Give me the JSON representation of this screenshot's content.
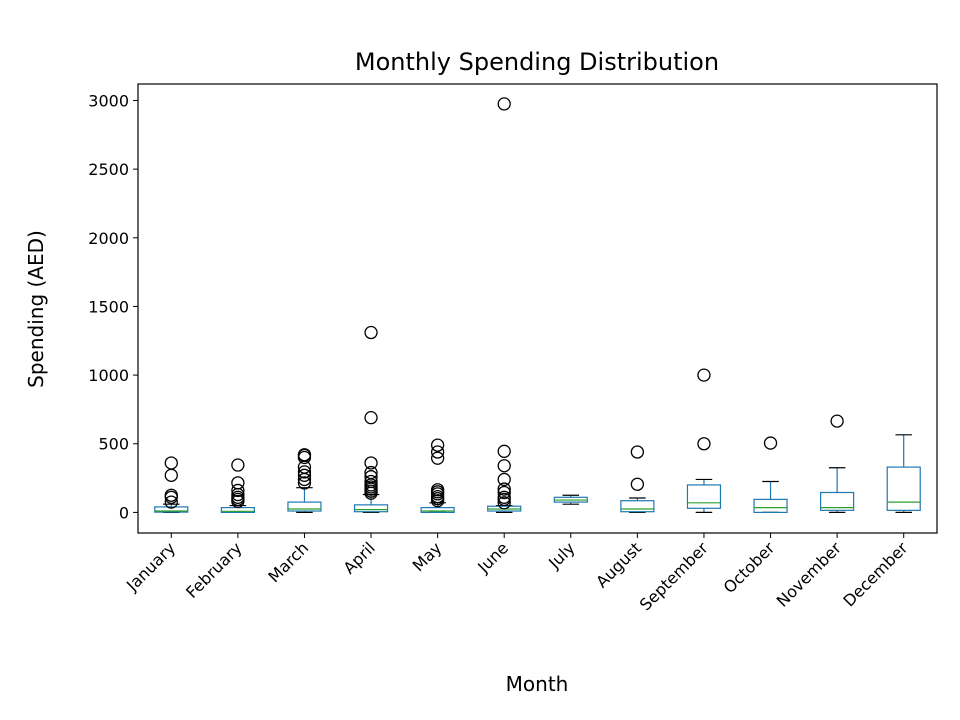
{
  "chart_data": {
    "type": "box",
    "title": "Monthly Spending Distribution",
    "xlabel": "Month",
    "ylabel": "Spending (AED)",
    "ylim": [
      -150,
      3120
    ],
    "yticks": [
      0,
      500,
      1000,
      1500,
      2000,
      2500,
      3000
    ],
    "grid": false,
    "categories": [
      "January",
      "February",
      "March",
      "April",
      "May",
      "June",
      "July",
      "August",
      "September",
      "October",
      "November",
      "December"
    ],
    "boxes": [
      {
        "category": "January",
        "whisker_low": 0,
        "q1": 2,
        "median": 10,
        "q3": 40,
        "whisker_high": 60,
        "outliers": [
          75,
          110,
          125,
          270,
          360
        ]
      },
      {
        "category": "February",
        "whisker_low": 0,
        "q1": 0,
        "median": 8,
        "q3": 35,
        "whisker_high": 50,
        "outliers": [
          80,
          95,
          110,
          130,
          160,
          215,
          345
        ]
      },
      {
        "category": "March",
        "whisker_low": 0,
        "q1": 10,
        "median": 25,
        "q3": 75,
        "whisker_high": 180,
        "outliers": [
          215,
          240,
          270,
          295,
          330,
          400,
          415,
          420
        ]
      },
      {
        "category": "April",
        "whisker_low": 0,
        "q1": 5,
        "median": 20,
        "q3": 55,
        "whisker_high": 130,
        "outliers": [
          140,
          155,
          170,
          185,
          200,
          225,
          260,
          290,
          360,
          690,
          1310
        ]
      },
      {
        "category": "May",
        "whisker_low": 0,
        "q1": 0,
        "median": 10,
        "q3": 35,
        "whisker_high": 70,
        "outliers": [
          85,
          100,
          115,
          135,
          150,
          165,
          395,
          440,
          490
        ]
      },
      {
        "category": "June",
        "whisker_low": 0,
        "q1": 10,
        "median": 25,
        "q3": 45,
        "whisker_high": 50,
        "outliers": [
          70,
          95,
          110,
          145,
          170,
          240,
          340,
          445,
          2975
        ]
      },
      {
        "category": "July",
        "whisker_low": 60,
        "q1": 75,
        "median": 90,
        "q3": 110,
        "whisker_high": 125,
        "outliers": []
      },
      {
        "category": "August",
        "whisker_low": 0,
        "q1": 5,
        "median": 25,
        "q3": 85,
        "whisker_high": 105,
        "outliers": [
          205,
          440
        ]
      },
      {
        "category": "September",
        "whisker_low": 0,
        "q1": 30,
        "median": 70,
        "q3": 200,
        "whisker_high": 240,
        "outliers": [
          500,
          1000
        ]
      },
      {
        "category": "October",
        "whisker_low": 0,
        "q1": 0,
        "median": 35,
        "q3": 95,
        "whisker_high": 225,
        "outliers": [
          505
        ]
      },
      {
        "category": "November",
        "whisker_low": 0,
        "q1": 15,
        "median": 35,
        "q3": 145,
        "whisker_high": 325,
        "outliers": [
          665
        ]
      },
      {
        "category": "December",
        "whisker_low": 0,
        "q1": 15,
        "median": 75,
        "q3": 330,
        "whisker_high": 565,
        "outliers": []
      }
    ],
    "colors": {
      "box": "#1f77b4",
      "median": "#2ca02c",
      "whisker": "#1f77b4",
      "cap": "#000000",
      "outlier": "#000000",
      "axis": "#000000"
    }
  }
}
